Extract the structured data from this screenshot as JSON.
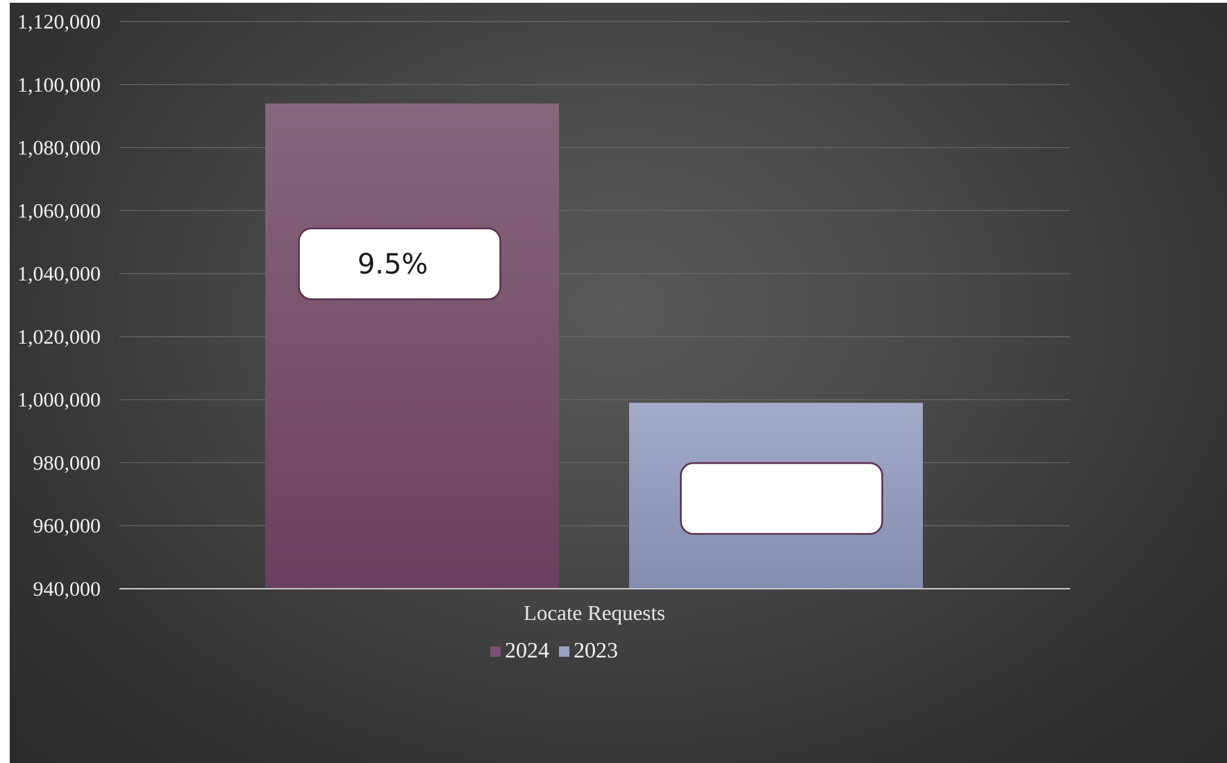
{
  "chart_data": {
    "type": "bar",
    "title": "",
    "xlabel": "",
    "ylabel": "",
    "categories": [
      "Locate Requests"
    ],
    "series": [
      {
        "name": "2024",
        "values": [
          1094000
        ],
        "color": "#7a5172",
        "label": "9.5%"
      },
      {
        "name": "2023",
        "values": [
          999000
        ],
        "color": "#98a2c2",
        "label": ""
      }
    ],
    "ylim": [
      940000,
      1120000
    ],
    "y_ticks": [
      940000,
      960000,
      980000,
      1000000,
      1020000,
      1040000,
      1060000,
      1080000,
      1100000,
      1120000
    ],
    "y_tick_labels": [
      "940,000",
      "960,000",
      "980,000",
      "1,000,000",
      "1,020,000",
      "1,040,000",
      "1,060,000",
      "1,080,000",
      "1,100,000",
      "1,120,000"
    ],
    "grid": true,
    "legend_position": "bottom"
  }
}
